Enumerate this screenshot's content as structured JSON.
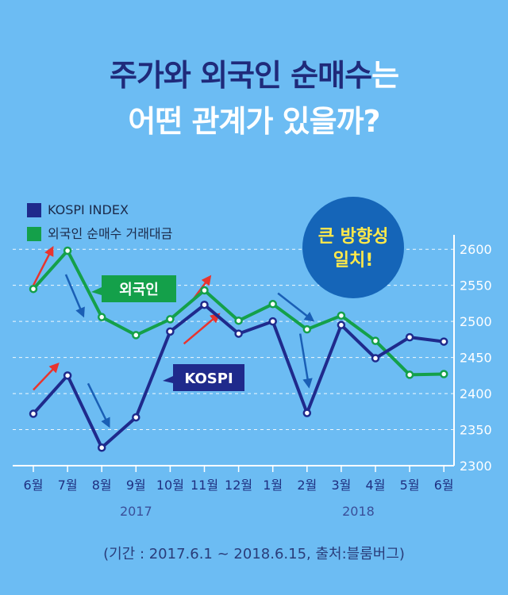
{
  "title": {
    "line1_dark": "주가와 외국인 순매수",
    "line1_light": "는",
    "line2": "어떤 관계가 있을까?"
  },
  "legend": {
    "kospi": "KOSPI INDEX",
    "foreign": "외국인 순매수 거래대금"
  },
  "badge": {
    "line1": "큰 방향성",
    "line2": "일치!"
  },
  "callouts": {
    "foreign": "외국인",
    "kospi": "KOSPI"
  },
  "source": "(기간 : 2017.6.1 ~ 2018.6.15, 출처:블룸버그)",
  "colors": {
    "background": "#6cbcf3",
    "kospi": "#1f2a8c",
    "foreign": "#14a04a",
    "badge": "#1565b8",
    "badge_text": "#ffe94a",
    "arrow_red": "#e8342f",
    "arrow_blue": "#1a5fb5"
  },
  "chart_data": {
    "type": "line",
    "categories": [
      "6월",
      "7월",
      "8월",
      "9월",
      "10월",
      "11월",
      "12월",
      "1월",
      "2월",
      "3월",
      "4월",
      "5월",
      "6월"
    ],
    "years": [
      {
        "label": "2017",
        "from": 0,
        "to": 6
      },
      {
        "label": "2018",
        "from": 7,
        "to": 12
      }
    ],
    "series": [
      {
        "name": "KOSPI",
        "values": [
          2372,
          2425,
          2325,
          2367,
          2486,
          2523,
          2483,
          2500,
          2373,
          2495,
          2449,
          2478,
          2472
        ]
      },
      {
        "name": "외국인",
        "values": [
          2545,
          2598,
          2506,
          2481,
          2503,
          2543,
          2501,
          2524,
          2489,
          2508,
          2473,
          2426,
          2427
        ]
      }
    ],
    "yticks": [
      2300,
      2350,
      2400,
      2450,
      2500,
      2550,
      2600
    ],
    "ylim": [
      2300,
      2620
    ],
    "grid": true,
    "arrows": [
      {
        "color": "red",
        "from": [
          0,
          2550
        ],
        "to": [
          0.55,
          2601
        ]
      },
      {
        "color": "blue",
        "from": [
          0.95,
          2565
        ],
        "to": [
          1.45,
          2509
        ]
      },
      {
        "color": "red",
        "from": [
          0,
          2405
        ],
        "to": [
          0.7,
          2440
        ]
      },
      {
        "color": "blue",
        "from": [
          1.6,
          2414
        ],
        "to": [
          2.2,
          2356
        ]
      },
      {
        "color": "red",
        "from": [
          4.6,
          2526
        ],
        "to": [
          5.15,
          2561
        ]
      },
      {
        "color": "red",
        "from": [
          4.4,
          2469
        ],
        "to": [
          5.4,
          2509
        ]
      },
      {
        "color": "blue",
        "from": [
          7.15,
          2539
        ],
        "to": [
          8.15,
          2502
        ]
      },
      {
        "color": "blue",
        "from": [
          7.8,
          2483
        ],
        "to": [
          8.05,
          2411
        ]
      }
    ]
  }
}
